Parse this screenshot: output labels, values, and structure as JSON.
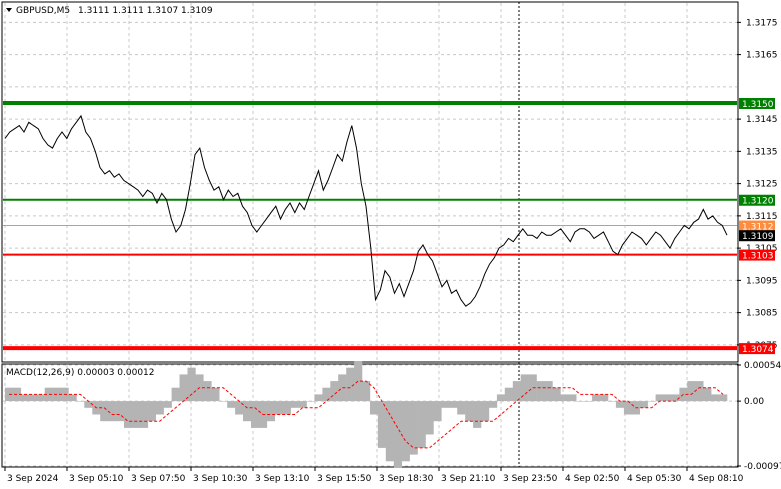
{
  "header": {
    "symbol_label": "GBPUSD,M5",
    "ohlc": "1.3111 1.3111 1.3107 1.3109",
    "dropdown_icon": "triangle-down-icon"
  },
  "macd": {
    "label": "MACD(12,26,9) 0.00003 0.00012",
    "axis_labels": [
      "0.00054",
      "0.00",
      "-0.00097"
    ],
    "hist_color": "#b4b4b4",
    "signal_color": "#ff0000"
  },
  "price_axis": {
    "labels": [
      "1.3175",
      "1.3165",
      "1.3145",
      "1.3135",
      "1.3125",
      "1.3115",
      "1.3105",
      "1.3095",
      "1.3085",
      "1.3075"
    ]
  },
  "levels": [
    {
      "price": 1.315,
      "label": "1.3150",
      "color": "#008000",
      "width": 4
    },
    {
      "price": 1.312,
      "label": "1.3120",
      "color": "#008000",
      "width": 2
    },
    {
      "price": 1.3112,
      "label": "1.3112",
      "color": "#ff8c3c",
      "width": 1
    },
    {
      "price": 1.3103,
      "label": "1.3103",
      "color": "#ff0000",
      "width": 2
    },
    {
      "price": 1.3074,
      "label": "1.3074",
      "color": "#ff0000",
      "width": 4
    }
  ],
  "current_price": {
    "price": 1.3109,
    "label": "1.3109",
    "color": "#000000"
  },
  "time_axis": {
    "labels": [
      "3 Sep 2024",
      "3 Sep 05:10",
      "3 Sep 07:50",
      "3 Sep 10:30",
      "3 Sep 13:10",
      "3 Sep 15:50",
      "3 Sep 18:30",
      "3 Sep 21:10",
      "3 Sep 23:50",
      "4 Sep 02:50",
      "4 Sep 05:30",
      "4 Sep 08:10"
    ]
  },
  "chart_data": {
    "type": "line",
    "series": [
      {
        "values": [
          1.3139,
          1.3141,
          1.3142,
          1.3143,
          1.3141,
          1.3144,
          1.3143,
          1.3142,
          1.3139,
          1.3137,
          1.3136,
          1.3139,
          1.3141,
          1.3139,
          1.3142,
          1.3144,
          1.3146,
          1.3141,
          1.3139,
          1.3135,
          1.313,
          1.3128,
          1.3129,
          1.3127,
          1.3128,
          1.3126,
          1.3125,
          1.3124,
          1.3123,
          1.3121,
          1.3123,
          1.3122,
          1.3119,
          1.3122,
          1.312,
          1.3114,
          1.311,
          1.3112,
          1.3117,
          1.3125,
          1.3134,
          1.3136,
          1.313,
          1.3126,
          1.3123,
          1.3124,
          1.312,
          1.3123,
          1.3121,
          1.3122,
          1.3118,
          1.3116,
          1.3112,
          1.311,
          1.3112,
          1.3114,
          1.3116,
          1.3118,
          1.3114,
          1.3117,
          1.3119,
          1.3116,
          1.3119,
          1.3117,
          1.3121,
          1.3125,
          1.3129,
          1.3123,
          1.3126,
          1.313,
          1.3134,
          1.3132,
          1.3138,
          1.3143,
          1.3136,
          1.3125,
          1.3118,
          1.3105,
          1.3089,
          1.3092,
          1.3098,
          1.3096,
          1.3091,
          1.3094,
          1.309,
          1.3094,
          1.3098,
          1.3104,
          1.3106,
          1.3103,
          1.3101,
          1.3097,
          1.3093,
          1.3095,
          1.3091,
          1.3092,
          1.3089,
          1.3087,
          1.3088,
          1.309,
          1.3093,
          1.3097,
          1.31,
          1.3102,
          1.3105,
          1.3106,
          1.3108,
          1.3107,
          1.3109,
          1.3111,
          1.3109,
          1.3109,
          1.3108,
          1.311,
          1.3109,
          1.3109,
          1.311,
          1.3111,
          1.3109,
          1.3107,
          1.311,
          1.3111,
          1.3111,
          1.311,
          1.3108,
          1.3109,
          1.311,
          1.3107,
          1.3104,
          1.3103,
          1.3106,
          1.3108,
          1.311,
          1.3109,
          1.3108,
          1.3106,
          1.3108,
          1.311,
          1.3109,
          1.3107,
          1.3105,
          1.3108,
          1.311,
          1.3112,
          1.3111,
          1.3113,
          1.3114,
          1.3117,
          1.3114,
          1.3115,
          1.3113,
          1.3112,
          1.3109
        ],
        "color": "#000000"
      }
    ],
    "ylim": [
      1.307,
      1.3181
    ],
    "grid": true,
    "macd_hist": [
      0.0002,
      0.0002,
      0.0001,
      0.0001,
      0.0001,
      0.0002,
      0.0002,
      0.0002,
      0.0001,
      0.0,
      -0.0001,
      -0.0002,
      -0.0003,
      -0.0003,
      -0.0003,
      -0.0004,
      -0.0004,
      -0.0004,
      -0.0003,
      -0.0002,
      -0.0001,
      0.0002,
      0.0004,
      0.0005,
      0.0004,
      0.0003,
      0.0002,
      0.0,
      -0.0001,
      -0.0002,
      -0.0003,
      -0.0004,
      -0.0004,
      -0.0003,
      -0.0002,
      -0.0002,
      -0.0001,
      -0.0001,
      0.0,
      0.0001,
      0.0002,
      0.0003,
      0.0004,
      0.0005,
      0.0006,
      0.0003,
      -0.0002,
      -0.0007,
      -0.0009,
      -0.001,
      -0.0009,
      -0.0008,
      -0.0007,
      -0.0005,
      -0.0003,
      -0.0001,
      -0.0001,
      -0.0002,
      -0.0003,
      -0.0004,
      -0.0003,
      -0.0001,
      0.0001,
      0.0002,
      0.0003,
      0.0004,
      0.0004,
      0.0003,
      0.0003,
      0.0002,
      0.0001,
      0.0001,
      0.0,
      0.0,
      0.0001,
      0.0001,
      0.0,
      -0.0001,
      -0.0002,
      -0.0002,
      -0.0001,
      0.0,
      0.0001,
      0.0001,
      0.0001,
      0.0002,
      0.0003,
      0.0003,
      0.0002,
      0.0001,
      0.0001
    ],
    "macd_signal": [
      0.0001,
      0.0001,
      0.0001,
      0.0001,
      0.0001,
      0.0001,
      0.0001,
      0.0001,
      0.0001,
      0.0001,
      0.0,
      -0.0001,
      -0.0001,
      -0.0002,
      -0.0002,
      -0.0003,
      -0.0003,
      -0.0003,
      -0.0003,
      -0.0003,
      -0.0002,
      -0.0001,
      0.0,
      0.0001,
      0.0002,
      0.0002,
      0.0002,
      0.0002,
      0.0001,
      0.0,
      -0.0001,
      -0.0001,
      -0.0002,
      -0.0002,
      -0.0002,
      -0.0002,
      -0.0002,
      -0.0001,
      -0.0001,
      -0.0001,
      0.0,
      0.0001,
      0.0002,
      0.0002,
      0.0003,
      0.0003,
      0.0002,
      0.0,
      -0.0002,
      -0.0004,
      -0.0006,
      -0.0007,
      -0.0007,
      -0.0007,
      -0.0006,
      -0.0005,
      -0.0004,
      -0.0003,
      -0.0003,
      -0.0003,
      -0.0003,
      -0.0003,
      -0.0002,
      -0.0001,
      0.0,
      0.0001,
      0.0002,
      0.0002,
      0.0002,
      0.0002,
      0.0002,
      0.0002,
      0.0001,
      0.0001,
      0.0001,
      0.0001,
      0.0001,
      0.0,
      0.0,
      -0.0001,
      -0.0001,
      -0.0001,
      0.0,
      0.0,
      0.0,
      0.0001,
      0.0001,
      0.0002,
      0.0002,
      0.0002,
      0.0001
    ],
    "macd_ylim": [
      -0.00097,
      0.00054
    ]
  }
}
